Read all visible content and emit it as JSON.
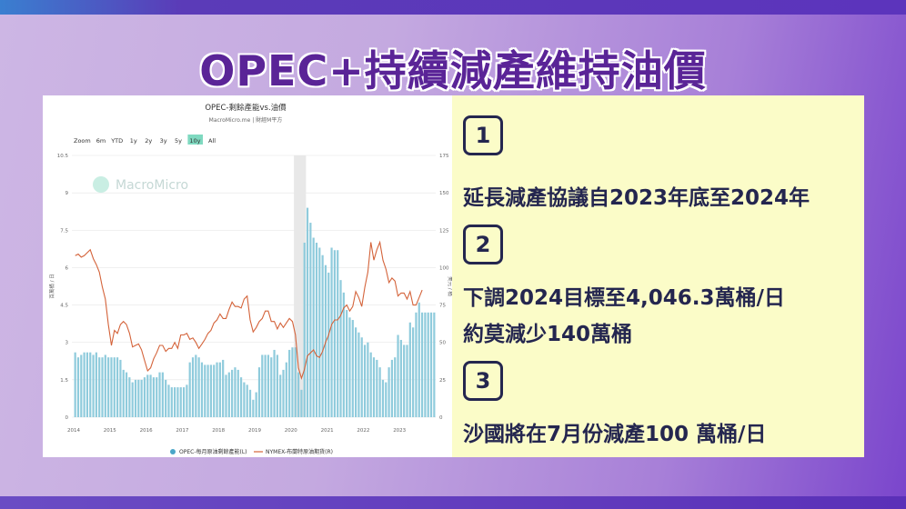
{
  "slide": {
    "title": "OPEC+持續減產維持油價",
    "points": [
      {
        "number": "1",
        "lines": [
          "延長減產協議自2023年底至2024年"
        ]
      },
      {
        "number": "2",
        "lines": [
          "下調2024目標至4,046.3萬桶/日",
          "約莫減少140萬桶"
        ]
      },
      {
        "number": "3",
        "lines": [
          "沙國將在7月份減產100  萬桶/日"
        ]
      }
    ]
  },
  "chart_data": {
    "type": "bar+line",
    "title": "OPEC-剩餘產能vs.油價",
    "subtitle": "MacroMicro.me | 財經M平方",
    "watermark": "MacroMicro",
    "range_buttons": [
      "Zoom",
      "6m",
      "YTD",
      "1y",
      "2y",
      "3y",
      "5y",
      "10y",
      "All"
    ],
    "range_selected": "10y",
    "ylabel_left": "百萬桶 / 日",
    "ylabel_right": "美元 / 桶",
    "ylim_left": [
      0,
      10.5
    ],
    "ylim_right": [
      0,
      175
    ],
    "yticks_left": [
      "0",
      "1.5",
      "3",
      "4.5",
      "6",
      "7.5",
      "9",
      "10.5"
    ],
    "yticks_right": [
      "0",
      "25",
      "50",
      "75",
      "100",
      "125",
      "150",
      "175"
    ],
    "xticks": [
      "2014",
      "2015",
      "2016",
      "2017",
      "2018",
      "2019",
      "2020",
      "2021",
      "2022",
      "2023"
    ],
    "x_start": "2014-01",
    "frequency": "monthly",
    "shaded_period": [
      "2020-02",
      "2020-05"
    ],
    "grid": true,
    "legend_position": "bottom",
    "colors": {
      "bars": "#8fcbdc",
      "line": "#d4633a",
      "selected_button": "#7fd9c0",
      "shade": "#e8e8e8"
    },
    "series": [
      {
        "name": "OPEC-每月原油剩餘產能(L)",
        "axis": "left",
        "kind": "bar",
        "values": [
          2.6,
          2.4,
          2.5,
          2.6,
          2.6,
          2.6,
          2.5,
          2.6,
          2.4,
          2.4,
          2.5,
          2.4,
          2.4,
          2.4,
          2.4,
          2.3,
          1.9,
          1.8,
          1.6,
          1.4,
          1.5,
          1.5,
          1.5,
          1.6,
          1.7,
          1.7,
          1.6,
          1.6,
          1.8,
          1.8,
          1.5,
          1.3,
          1.2,
          1.2,
          1.2,
          1.2,
          1.2,
          1.3,
          2.2,
          2.4,
          2.5,
          2.4,
          2.2,
          2.1,
          2.1,
          2.1,
          2.1,
          2.2,
          2.2,
          2.3,
          1.7,
          1.8,
          1.9,
          2.0,
          1.9,
          1.6,
          1.4,
          1.3,
          1.1,
          0.7,
          1.0,
          2.0,
          2.5,
          2.5,
          2.5,
          2.4,
          2.7,
          2.5,
          1.7,
          1.9,
          2.2,
          2.7,
          2.8,
          2.8,
          1.8,
          1.1,
          7.0,
          8.4,
          7.8,
          7.2,
          7.0,
          6.8,
          6.5,
          6.1,
          5.8,
          6.8,
          6.7,
          6.7,
          5.5,
          5.0,
          4.3,
          4.0,
          3.9,
          3.6,
          3.4,
          3.2,
          2.9,
          3.0,
          2.6,
          2.4,
          2.3,
          2.0,
          1.5,
          1.4,
          2.0,
          2.3,
          2.4,
          3.3,
          3.1,
          2.9,
          2.9,
          3.8,
          3.6,
          4.2,
          4.6,
          4.2,
          4.2,
          4.2,
          4.2,
          4.2
        ]
      },
      {
        "name": "NYMEX-布蘭特原油期貨(R)",
        "axis": "right",
        "kind": "line",
        "values": [
          108,
          109,
          107,
          108,
          110,
          112,
          106,
          102,
          97,
          87,
          79,
          62,
          48,
          58,
          56,
          62,
          64,
          62,
          56,
          47,
          48,
          49,
          45,
          38,
          31,
          33,
          39,
          43,
          48,
          48,
          44,
          46,
          46,
          50,
          46,
          55,
          55,
          56,
          52,
          53,
          50,
          46,
          49,
          52,
          56,
          58,
          63,
          65,
          69,
          66,
          66,
          72,
          77,
          74,
          74,
          73,
          79,
          81,
          65,
          57,
          60,
          64,
          66,
          71,
          71,
          64,
          64,
          59,
          63,
          60,
          63,
          66,
          64,
          55,
          33,
          26,
          32,
          41,
          43,
          45,
          41,
          40,
          44,
          50,
          55,
          62,
          65,
          65,
          68,
          73,
          75,
          71,
          74,
          84,
          80,
          74,
          87,
          97,
          117,
          105,
          112,
          117,
          105,
          99,
          90,
          93,
          91,
          81,
          83,
          83,
          79,
          84,
          75,
          75,
          80,
          85
        ]
      }
    ]
  }
}
